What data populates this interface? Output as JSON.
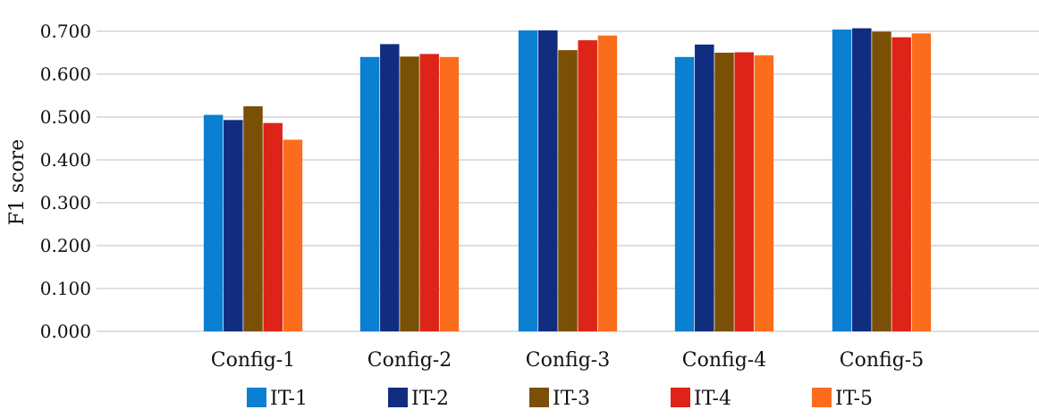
{
  "chart_data": {
    "type": "bar",
    "title": "",
    "xlabel": "",
    "ylabel": "F1 score",
    "ylim": [
      0,
      0.7
    ],
    "yticks": [
      "0.000",
      "0.100",
      "0.200",
      "0.300",
      "0.400",
      "0.500",
      "0.600",
      "0.700"
    ],
    "grid": true,
    "legend_position": "bottom",
    "categories": [
      "Config-1",
      "Config-2",
      "Config-3",
      "Config-4",
      "Config-5"
    ],
    "series": [
      {
        "name": "IT-1",
        "color": "#0b7fd1",
        "values": [
          0.505,
          0.64,
          0.702,
          0.64,
          0.704
        ]
      },
      {
        "name": "IT-2",
        "color": "#112d80",
        "values": [
          0.493,
          0.67,
          0.702,
          0.669,
          0.707
        ]
      },
      {
        "name": "IT-3",
        "color": "#7a5006",
        "values": [
          0.525,
          0.641,
          0.656,
          0.65,
          0.699
        ]
      },
      {
        "name": "IT-4",
        "color": "#de2418",
        "values": [
          0.486,
          0.647,
          0.679,
          0.651,
          0.686
        ]
      },
      {
        "name": "IT-5",
        "color": "#fb6d1c",
        "values": [
          0.447,
          0.64,
          0.69,
          0.644,
          0.695
        ]
      }
    ]
  }
}
